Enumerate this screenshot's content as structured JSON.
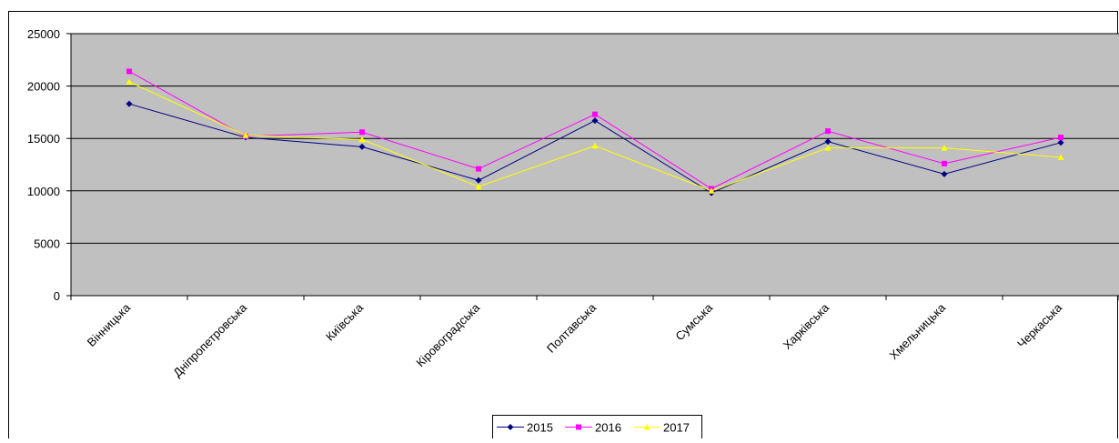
{
  "chart_data": {
    "type": "line",
    "categories": [
      "Вінницька",
      "Дніпропетровська",
      "Київська",
      "Кіровоградська",
      "Полтавська",
      "Сумська",
      "Харківська",
      "Хмельницька",
      "Черкаська"
    ],
    "series": [
      {
        "name": "2015",
        "color": "#000080",
        "marker": "diamond",
        "values": [
          18300,
          15100,
          14200,
          11000,
          16700,
          9800,
          14700,
          11600,
          14600
        ]
      },
      {
        "name": "2016",
        "color": "#ff00ff",
        "marker": "square",
        "values": [
          21400,
          15200,
          15600,
          12100,
          17300,
          10200,
          15700,
          12600,
          15100
        ]
      },
      {
        "name": "2017",
        "color": "#ffff00",
        "marker": "triangle",
        "values": [
          20400,
          15300,
          14900,
          10400,
          14300,
          10000,
          14100,
          14100,
          13200
        ]
      }
    ],
    "y_ticks": [
      "0",
      "5000",
      "10000",
      "15000",
      "20000",
      "25000"
    ],
    "ylim": [
      0,
      25000
    ],
    "grid": true,
    "plot_background": "#c0c0c0",
    "legend_position": "bottom-center"
  }
}
